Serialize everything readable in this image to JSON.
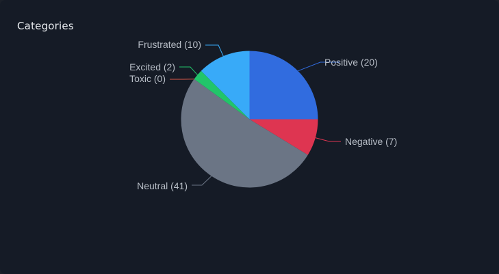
{
  "card": {
    "title": "Categories"
  },
  "chart_data": {
    "type": "pie",
    "title": "Categories",
    "slices": [
      {
        "name": "Positive",
        "value": 20,
        "label": "Positive (20)",
        "color": "#316cdf"
      },
      {
        "name": "Negative",
        "value": 7,
        "label": "Negative (7)",
        "color": "#de3551"
      },
      {
        "name": "Neutral",
        "value": 41,
        "label": "Neutral (41)",
        "color": "#6b7585"
      },
      {
        "name": "Toxic",
        "value": 0,
        "label": "Toxic (0)",
        "color": "#e05a4a"
      },
      {
        "name": "Excited",
        "value": 2,
        "label": "Excited (2)",
        "color": "#22c56a"
      },
      {
        "name": "Frustrated",
        "value": 10,
        "label": "Frustrated (10)",
        "color": "#38aaf8"
      }
    ],
    "start": "12 o'clock",
    "direction": "clockwise",
    "legend": "none"
  }
}
